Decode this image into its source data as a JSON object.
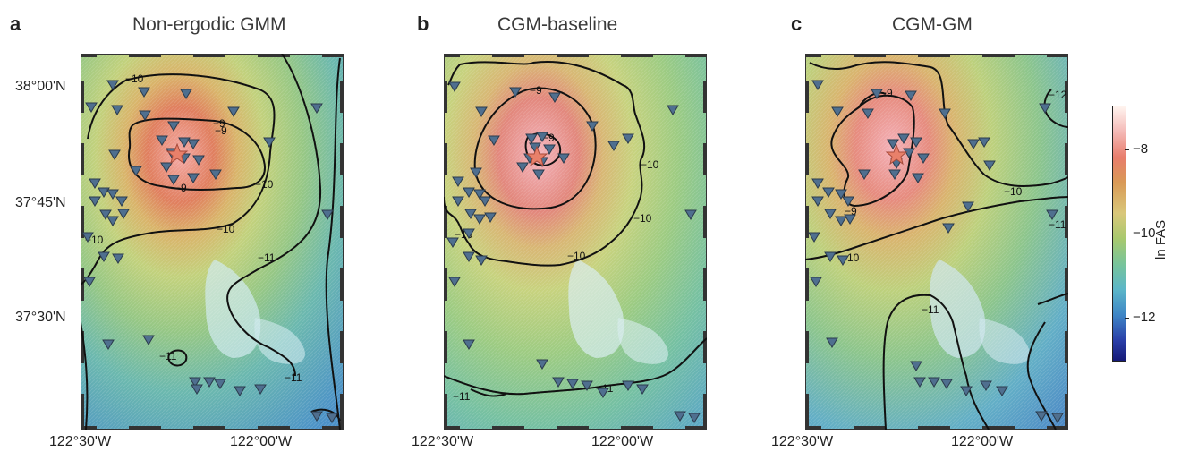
{
  "panels": [
    {
      "letter": "a",
      "title": "Non-ergodic GMM"
    },
    {
      "letter": "b",
      "title": "CGM-baseline"
    },
    {
      "letter": "c",
      "title": "CGM-GM"
    }
  ],
  "lat_labels": [
    "38°00'N",
    "37°45'N",
    "37°30'N"
  ],
  "lon_labels": [
    "122°30'W",
    "122°00'W"
  ],
  "colorbar": {
    "title": "ln FAS",
    "ticks": [
      "−8",
      "−10",
      "−12"
    ]
  },
  "contour_labels": {
    "a": [
      "−10",
      "−9",
      "−9",
      "−9",
      "−10",
      "−10",
      "−10",
      "−11",
      "−11",
      "−11"
    ],
    "b": [
      "−9",
      "−9",
      "−10",
      "−10",
      "−10",
      "−10",
      "−11",
      "−11"
    ],
    "c": [
      "−9",
      "−9",
      "−10",
      "−10",
      "−11",
      "−11",
      "−12"
    ]
  },
  "colors": {
    "contour": "#111111",
    "station": "#4f6f8f",
    "epicenter": "#e8806a",
    "high": "#e6857a",
    "mid": "#b8cf70",
    "low": "#5aa8c8"
  },
  "icons": {
    "station": "inverted-triangle",
    "epicenter": "star"
  }
}
